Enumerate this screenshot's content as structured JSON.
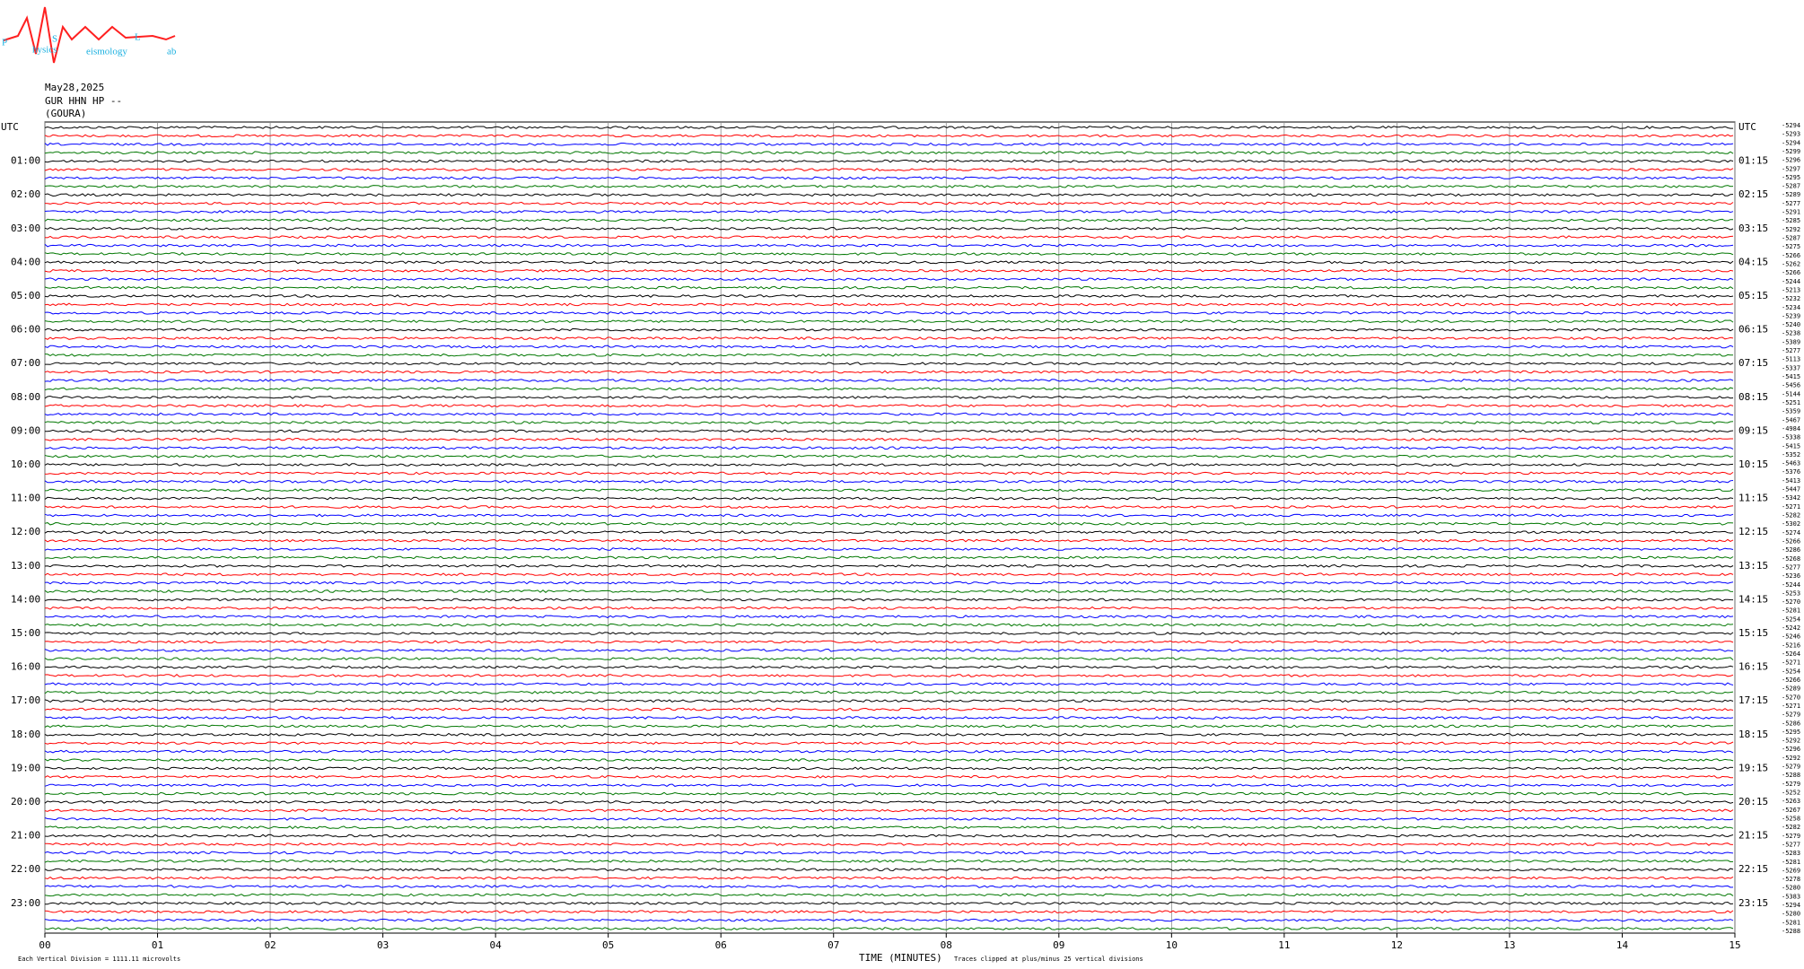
{
  "logo": {
    "p": "P",
    "s": "S",
    "l": "L",
    "p_rest": "hysics",
    "s_rest": "eismology",
    "l_rest": "ab"
  },
  "chart_data": {
    "type": "helicorder",
    "date": "May28,2025",
    "station": "GUR HHN HP --",
    "location": "(GOURA)",
    "x_label": "TIME (MINUTES)",
    "scale_note": "Each Vertical Division = 1111.11 microvolts",
    "clip_note": "Traces clipped at plus/minus 25 vertical divisions",
    "left_labels": [
      "UTC",
      "01:00",
      "02:00",
      "03:00",
      "04:00",
      "05:00",
      "06:00",
      "07:00",
      "08:00",
      "09:00",
      "10:00",
      "11:00",
      "12:00",
      "13:00",
      "14:00",
      "15:00",
      "16:00",
      "17:00",
      "18:00",
      "19:00",
      "20:00",
      "21:00",
      "22:00",
      "23:00"
    ],
    "right_labels": [
      "UTC",
      "01:15",
      "02:15",
      "03:15",
      "04:15",
      "05:15",
      "06:15",
      "07:15",
      "08:15",
      "09:15",
      "10:15",
      "11:15",
      "12:15",
      "13:15",
      "14:15",
      "15:15",
      "16:15",
      "17:15",
      "18:15",
      "19:15",
      "20:15",
      "21:15",
      "22:15",
      "23:15"
    ],
    "offsets": [
      -5294,
      -5293,
      -5294,
      -5299,
      -5296,
      -5297,
      -5295,
      -5287,
      -5289,
      -5277,
      -5291,
      -5285,
      -5292,
      -5287,
      -5275,
      -5266,
      -5262,
      -5266,
      -5244,
      -5213,
      -5232,
      -5234,
      -5239,
      -5240,
      -5238,
      -5389,
      -5277,
      -5113,
      -5337,
      -5415,
      -5456,
      -5144,
      -5251,
      -5359,
      -5467,
      -4984,
      -5338,
      -5415,
      -5352,
      -5463,
      -5376,
      -5413,
      -5447,
      -5342,
      -5271,
      -5282,
      -5302,
      -5274,
      -5266,
      -5286,
      -5268,
      -5277,
      -5236,
      -5244,
      -5253,
      -5270,
      -5281,
      -5254,
      -5242,
      -5246,
      -5216,
      -5264,
      -5271,
      -5254,
      -5266,
      -5289,
      -5270,
      -5271,
      -5279,
      -5286,
      -5295,
      -5292,
      -5296,
      -5292,
      -5279,
      -5288,
      -5279,
      -5252,
      -5263,
      -5267,
      -5258,
      -5282,
      -5279,
      -5277,
      -5283,
      -5281,
      -5269,
      -5278,
      -5280,
      -5383,
      -5294,
      -5280,
      -5281,
      -5288
    ],
    "xlim": [
      0,
      15
    ],
    "xticks": [
      {
        "value": 0,
        "label": "00"
      },
      {
        "value": 1,
        "label": "01"
      },
      {
        "value": 2,
        "label": "02"
      },
      {
        "value": 3,
        "label": "03"
      },
      {
        "value": 4,
        "label": "04"
      },
      {
        "value": 5,
        "label": "05"
      },
      {
        "value": 6,
        "label": "06"
      },
      {
        "value": 7,
        "label": "07"
      },
      {
        "value": 8,
        "label": "08"
      },
      {
        "value": 9,
        "label": "09"
      },
      {
        "value": 10,
        "label": "10"
      },
      {
        "value": 11,
        "label": "11"
      },
      {
        "value": 12,
        "label": "12"
      },
      {
        "value": 13,
        "label": "13"
      },
      {
        "value": 14,
        "label": "14"
      },
      {
        "value": 15,
        "label": "15"
      }
    ],
    "colors": [
      "#000000",
      "#ff0000",
      "#0000ff",
      "#007700"
    ],
    "grid": true
  }
}
